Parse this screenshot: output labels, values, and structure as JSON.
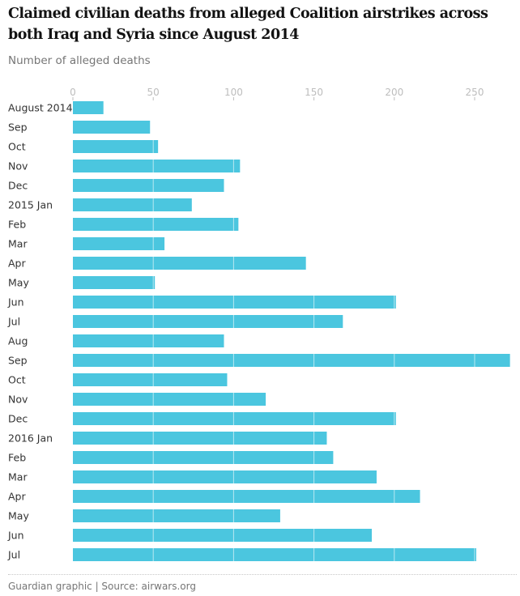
{
  "chart_data": {
    "type": "bar",
    "orientation": "horizontal",
    "title": "Claimed civilian deaths from alleged Coalition airstrikes across both Iraq and Syria since August 2014",
    "subtitle": "Number of alleged deaths",
    "xlabel": "",
    "ylabel": "",
    "xlim": [
      0,
      272
    ],
    "xticks": [
      0,
      50,
      100,
      150,
      200,
      250
    ],
    "grid": true,
    "categories": [
      "August 2014",
      "Sep",
      "Oct",
      "Nov",
      "Dec",
      "2015 Jan",
      "Feb",
      "Mar",
      "Apr",
      "May",
      "Jun",
      "Jul",
      "Aug",
      "Sep",
      "Oct",
      "Nov",
      "Dec",
      "2016 Jan",
      "Feb",
      "Mar",
      "Apr",
      "May",
      "Jun",
      "Jul"
    ],
    "values": [
      19,
      48,
      53,
      104,
      94,
      74,
      103,
      57,
      145,
      51,
      201,
      168,
      94,
      272,
      96,
      120,
      201,
      158,
      162,
      189,
      216,
      129,
      186,
      251
    ],
    "bar_color": "#4bc6df",
    "footer": "Guardian graphic | Source: airwars.org"
  }
}
